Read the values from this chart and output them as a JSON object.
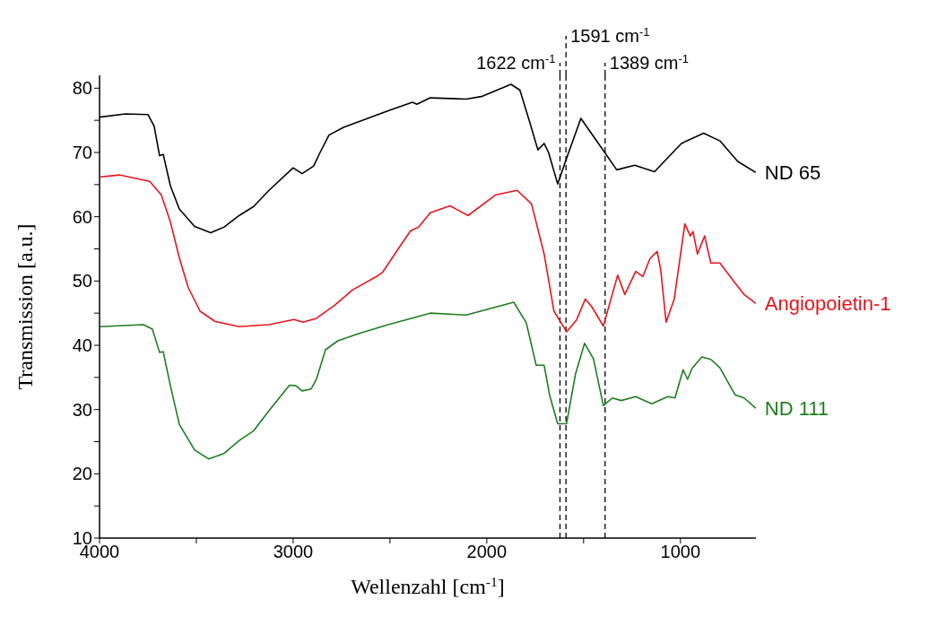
{
  "chart_data": {
    "type": "line",
    "xlabel": "Wellenzahl [cm$^{-1}$]",
    "ylabel": "Transmission [a.u.]",
    "xlim": [
      4000,
      610
    ],
    "ylim": [
      10,
      82
    ],
    "xticks": [
      4000,
      {
        "value": 3500,
        "label": null
      },
      3000,
      {
        "value": 2500,
        "label": null
      },
      2000,
      {
        "value": 1500,
        "label": null
      },
      1000
    ],
    "yticks": [
      10,
      {
        "value": 15,
        "label": null
      },
      20,
      {
        "value": 25,
        "label": null
      },
      30,
      {
        "value": 35,
        "label": null
      },
      40,
      {
        "value": 45,
        "label": null
      },
      50,
      {
        "value": 55,
        "label": null
      },
      60,
      {
        "value": 65,
        "label": null
      },
      70,
      {
        "value": 75,
        "label": null
      },
      80
    ],
    "grid": false,
    "marker": "none",
    "line_style": "solid",
    "ref_lines": [
      {
        "axis": "x",
        "value": 1622,
        "label": "1622 cm$^{-1}$",
        "color": "#000000",
        "line_style": "dashed"
      },
      {
        "axis": "x",
        "value": 1591,
        "label": "1591 cm$^{-1}$",
        "color": "#000000",
        "line_style": "dashed"
      },
      {
        "axis": "x",
        "value": 1389,
        "label": "1389 cm$^{-1}$",
        "color": "#000000",
        "line_style": "dashed"
      }
    ],
    "series": [
      {
        "name": "ND 65",
        "color": "#000000",
        "x": [
          4000,
          3866,
          3750,
          3718,
          3690,
          3671,
          3634,
          3588,
          3509,
          3426,
          3356,
          3278,
          3204,
          3125,
          3000,
          2954,
          2894,
          2861,
          2815,
          2740,
          2509,
          2384,
          2361,
          2292,
          2106,
          2028,
          1875,
          1829,
          1782,
          1736,
          1704,
          1681,
          1634,
          1583,
          1514,
          1412,
          1329,
          1236,
          1134,
          995,
          880,
          796,
          704,
          611
        ],
        "values": [
          75.5,
          76.0,
          75.9,
          74.1,
          69.5,
          69.7,
          64.8,
          61.2,
          58.5,
          57.5,
          58.4,
          60.2,
          61.6,
          64.1,
          67.6,
          66.7,
          67.9,
          70.0,
          72.7,
          73.9,
          76.5,
          77.8,
          77.5,
          78.5,
          78.3,
          78.7,
          80.6,
          79.7,
          75.1,
          70.4,
          71.4,
          70.0,
          65.1,
          69.5,
          75.3,
          70.9,
          67.3,
          68.0,
          67.0,
          71.4,
          73.0,
          71.8,
          68.6,
          66.9
        ]
      },
      {
        "name": "Angiopoietin-1",
        "color": "#e8141b",
        "x": [
          3995,
          3898,
          3741,
          3681,
          3634,
          3588,
          3542,
          3481,
          3403,
          3278,
          3125,
          2995,
          2949,
          2880,
          2787,
          2694,
          2569,
          2537,
          2444,
          2394,
          2352,
          2292,
          2190,
          2097,
          1954,
          1843,
          1769,
          1704,
          1653,
          1588,
          1537,
          1491,
          1458,
          1398,
          1324,
          1287,
          1231,
          1194,
          1157,
          1120,
          1102,
          1074,
          1032,
          977,
          949,
          935,
          912,
          875,
          843,
          796,
          718,
          671,
          611
        ],
        "values": [
          66.2,
          66.5,
          65.5,
          63.4,
          59.2,
          53.6,
          49.0,
          45.3,
          43.7,
          42.9,
          43.2,
          44.0,
          43.6,
          44.2,
          46.2,
          48.6,
          50.7,
          51.4,
          55.6,
          57.8,
          58.4,
          60.6,
          61.7,
          60.2,
          63.4,
          64.1,
          62.0,
          54.2,
          45.3,
          42.1,
          43.9,
          47.2,
          46.0,
          43.0,
          50.9,
          47.9,
          51.5,
          50.7,
          53.5,
          54.6,
          51.8,
          43.6,
          47.2,
          58.9,
          57.0,
          57.7,
          54.2,
          57.0,
          52.8,
          52.8,
          49.7,
          47.9,
          46.5
        ]
      },
      {
        "name": "ND 111",
        "color": "#1e7d1e",
        "x": [
          3995,
          3773,
          3727,
          3690,
          3671,
          3634,
          3588,
          3509,
          3435,
          3356,
          3278,
          3204,
          3125,
          3019,
          2986,
          2954,
          2907,
          2880,
          2833,
          2769,
          2662,
          2509,
          2292,
          2106,
          1861,
          1796,
          1745,
          1704,
          1676,
          1634,
          1588,
          1542,
          1495,
          1449,
          1398,
          1352,
          1306,
          1231,
          1148,
          1065,
          1028,
          986,
          963,
          940,
          889,
          843,
          796,
          718,
          671,
          611
        ],
        "values": [
          42.9,
          43.2,
          42.5,
          38.9,
          39.0,
          33.7,
          27.7,
          23.7,
          22.3,
          23.2,
          25.2,
          26.7,
          29.8,
          33.8,
          33.7,
          32.9,
          33.2,
          34.7,
          39.3,
          40.7,
          41.8,
          43.2,
          45.0,
          44.7,
          46.7,
          43.5,
          36.9,
          36.9,
          32.3,
          27.8,
          27.8,
          35.5,
          40.3,
          37.9,
          30.6,
          31.8,
          31.4,
          32.0,
          30.9,
          32.0,
          31.8,
          36.2,
          34.7,
          36.4,
          38.2,
          37.8,
          36.5,
          32.3,
          31.8,
          30.2
        ]
      }
    ]
  }
}
